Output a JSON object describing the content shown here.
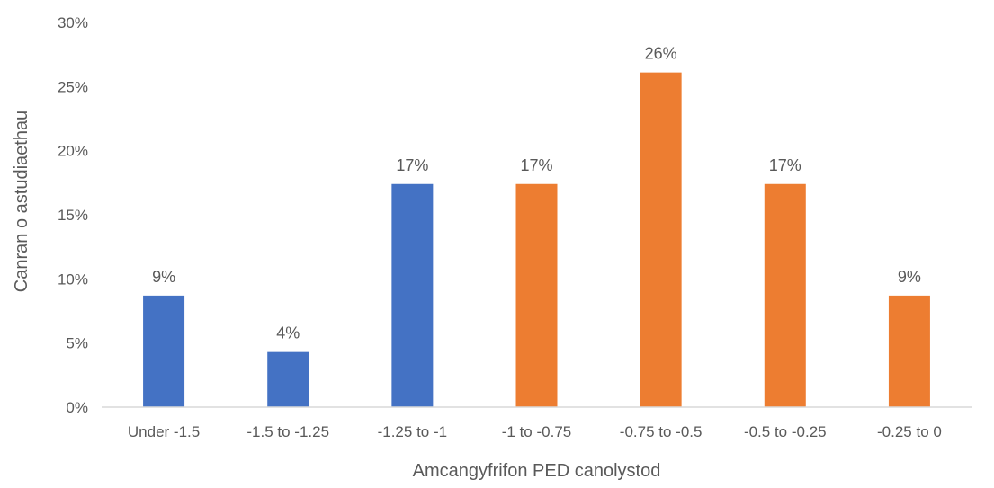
{
  "chart_data": {
    "type": "bar",
    "title": "",
    "xlabel": "Amcangyfrifon PED canolystod",
    "ylabel": "Canran o astudiaethau",
    "categories": [
      "Under -1.5",
      "-1.5 to -1.25",
      "-1.25 to -1",
      "-1 to -0.75",
      "-0.75 to -0.5",
      "-0.5 to -0.25",
      "-0.25 to 0"
    ],
    "values": [
      8.7,
      4.3,
      17.4,
      17.4,
      26.1,
      17.4,
      8.7
    ],
    "data_labels": [
      "9%",
      "4%",
      "17%",
      "17%",
      "26%",
      "17%",
      "9%"
    ],
    "bar_colors": [
      "#4472c4",
      "#4472c4",
      "#4472c4",
      "#ed7d31",
      "#ed7d31",
      "#ed7d31",
      "#ed7d31"
    ],
    "ylim": [
      0,
      30
    ],
    "yticks": [
      0,
      5,
      10,
      15,
      20,
      25,
      30
    ],
    "ytick_labels": [
      "0%",
      "5%",
      "10%",
      "15%",
      "20%",
      "25%",
      "30%"
    ],
    "grid": false,
    "legend": "none"
  },
  "colors": {
    "blue": "#4472c4",
    "orange": "#ed7d31",
    "axis_line": "#d9d9d9",
    "text": "#595959"
  }
}
